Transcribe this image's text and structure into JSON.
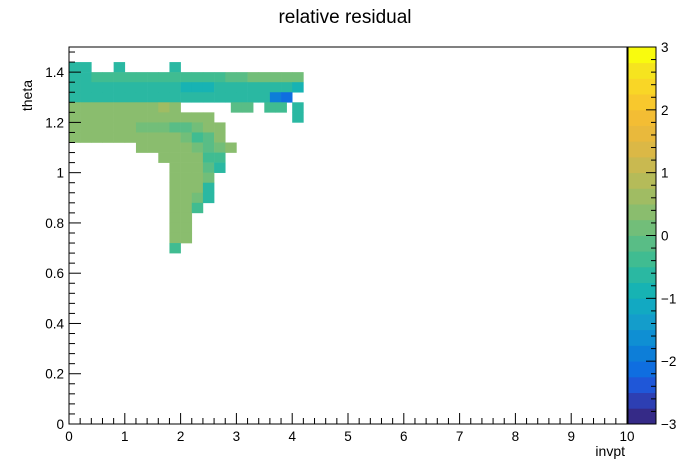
{
  "chart_data": {
    "type": "heatmap",
    "title": "relative residual",
    "xlabel": "invpt",
    "ylabel": "theta",
    "xlim": [
      0,
      10
    ],
    "ylim": [
      0,
      1.5
    ],
    "x_ticks": [
      "0",
      "1",
      "2",
      "3",
      "4",
      "5",
      "6",
      "7",
      "8",
      "9",
      "10"
    ],
    "y_ticks": [
      "0",
      "0.2",
      "0.4",
      "0.6",
      "0.8",
      "1",
      "1.2",
      "1.4"
    ],
    "color_scale": {
      "min": -3,
      "max": 3,
      "ticks": [
        "−3",
        "−2",
        "−1",
        "0",
        "1",
        "2",
        "3"
      ],
      "palette": [
        "#352a87",
        "#2d3fb3",
        "#1f57d8",
        "#0f6ee0",
        "#0d7ed8",
        "#0f8fd3",
        "#149dcb",
        "#12a9c2",
        "#17b3b3",
        "#2ab8a2",
        "#40bc91",
        "#59bd86",
        "#72be79",
        "#8abd6e",
        "#a0bc63",
        "#b5bb59",
        "#c9b950",
        "#dbb846",
        "#e9b93c",
        "#f3bd34",
        "#f8c82d",
        "#f9d626",
        "#f6e41f",
        "#f9fb0e"
      ]
    },
    "cell_size": {
      "dx": 0.2,
      "dy": 0.04
    },
    "cells": [
      {
        "x": 0.1,
        "y": 1.42,
        "v": -0.6
      },
      {
        "x": 0.3,
        "y": 1.42,
        "v": -0.6
      },
      {
        "x": 0.9,
        "y": 1.42,
        "v": -0.6
      },
      {
        "x": 1.9,
        "y": 1.42,
        "v": -0.6
      },
      {
        "x": 0.1,
        "y": 1.38,
        "v": -0.6
      },
      {
        "x": 0.3,
        "y": 1.38,
        "v": -0.6
      },
      {
        "x": 0.5,
        "y": 1.38,
        "v": -0.5
      },
      {
        "x": 0.7,
        "y": 1.38,
        "v": -0.5
      },
      {
        "x": 0.9,
        "y": 1.38,
        "v": -0.5
      },
      {
        "x": 1.1,
        "y": 1.38,
        "v": -0.5
      },
      {
        "x": 1.3,
        "y": 1.38,
        "v": -0.5
      },
      {
        "x": 1.5,
        "y": 1.38,
        "v": -0.5
      },
      {
        "x": 1.7,
        "y": 1.38,
        "v": -0.5
      },
      {
        "x": 1.9,
        "y": 1.38,
        "v": -0.5
      },
      {
        "x": 2.1,
        "y": 1.38,
        "v": -0.4
      },
      {
        "x": 2.3,
        "y": 1.38,
        "v": -0.4
      },
      {
        "x": 2.5,
        "y": 1.38,
        "v": -0.3
      },
      {
        "x": 2.7,
        "y": 1.38,
        "v": -0.3
      },
      {
        "x": 2.9,
        "y": 1.38,
        "v": -0.2
      },
      {
        "x": 3.1,
        "y": 1.38,
        "v": -0.1
      },
      {
        "x": 3.3,
        "y": 1.38,
        "v": 0.0
      },
      {
        "x": 3.5,
        "y": 1.38,
        "v": 0.0
      },
      {
        "x": 3.7,
        "y": 1.38,
        "v": 0.1
      },
      {
        "x": 3.9,
        "y": 1.38,
        "v": 0.1
      },
      {
        "x": 4.1,
        "y": 1.38,
        "v": 0.1
      },
      {
        "x": 0.1,
        "y": 1.34,
        "v": -0.6
      },
      {
        "x": 0.3,
        "y": 1.34,
        "v": -0.6
      },
      {
        "x": 0.5,
        "y": 1.34,
        "v": -0.6
      },
      {
        "x": 0.7,
        "y": 1.34,
        "v": -0.6
      },
      {
        "x": 0.9,
        "y": 1.34,
        "v": -0.6
      },
      {
        "x": 1.1,
        "y": 1.34,
        "v": -0.7
      },
      {
        "x": 1.3,
        "y": 1.34,
        "v": -0.7
      },
      {
        "x": 1.5,
        "y": 1.34,
        "v": -0.7
      },
      {
        "x": 1.7,
        "y": 1.34,
        "v": -0.7
      },
      {
        "x": 1.9,
        "y": 1.34,
        "v": -0.7
      },
      {
        "x": 2.1,
        "y": 1.34,
        "v": -0.8
      },
      {
        "x": 2.3,
        "y": 1.34,
        "v": -0.8
      },
      {
        "x": 2.5,
        "y": 1.34,
        "v": -0.8
      },
      {
        "x": 2.7,
        "y": 1.34,
        "v": -0.7
      },
      {
        "x": 2.9,
        "y": 1.34,
        "v": -0.6
      },
      {
        "x": 3.1,
        "y": 1.34,
        "v": -0.6
      },
      {
        "x": 3.3,
        "y": 1.34,
        "v": -0.6
      },
      {
        "x": 3.5,
        "y": 1.34,
        "v": -0.6
      },
      {
        "x": 3.7,
        "y": 1.34,
        "v": -0.6
      },
      {
        "x": 3.9,
        "y": 1.34,
        "v": -0.6
      },
      {
        "x": 4.1,
        "y": 1.34,
        "v": -1.0
      },
      {
        "x": 0.1,
        "y": 1.3,
        "v": -0.6
      },
      {
        "x": 0.3,
        "y": 1.3,
        "v": -0.6
      },
      {
        "x": 0.5,
        "y": 1.3,
        "v": -0.6
      },
      {
        "x": 0.7,
        "y": 1.3,
        "v": -0.6
      },
      {
        "x": 0.9,
        "y": 1.3,
        "v": -0.6
      },
      {
        "x": 1.1,
        "y": 1.3,
        "v": -0.6
      },
      {
        "x": 1.3,
        "y": 1.3,
        "v": -0.6
      },
      {
        "x": 1.5,
        "y": 1.3,
        "v": -0.6
      },
      {
        "x": 1.7,
        "y": 1.3,
        "v": -0.6
      },
      {
        "x": 1.9,
        "y": 1.3,
        "v": -0.6
      },
      {
        "x": 2.1,
        "y": 1.3,
        "v": -0.6
      },
      {
        "x": 2.3,
        "y": 1.3,
        "v": -0.6
      },
      {
        "x": 2.5,
        "y": 1.3,
        "v": -0.6
      },
      {
        "x": 2.7,
        "y": 1.3,
        "v": -0.6
      },
      {
        "x": 2.9,
        "y": 1.3,
        "v": -0.6
      },
      {
        "x": 3.1,
        "y": 1.3,
        "v": -0.6
      },
      {
        "x": 3.3,
        "y": 1.3,
        "v": -0.6
      },
      {
        "x": 3.5,
        "y": 1.3,
        "v": -0.6
      },
      {
        "x": 3.7,
        "y": 1.3,
        "v": -2.0
      },
      {
        "x": 3.9,
        "y": 1.3,
        "v": -2.2
      },
      {
        "x": 3.0,
        "y": 1.26,
        "v": -0.2
      },
      {
        "x": 3.2,
        "y": 1.26,
        "v": -0.2
      },
      {
        "x": 3.6,
        "y": 1.26,
        "v": -0.5
      },
      {
        "x": 3.8,
        "y": 1.26,
        "v": -0.5
      },
      {
        "x": 4.1,
        "y": 1.26,
        "v": -0.6
      },
      {
        "x": 4.1,
        "y": 1.22,
        "v": -0.6
      },
      {
        "x": 0.1,
        "y": 1.26,
        "v": 0.3
      },
      {
        "x": 0.3,
        "y": 1.26,
        "v": 0.3
      },
      {
        "x": 0.5,
        "y": 1.26,
        "v": 0.3
      },
      {
        "x": 0.7,
        "y": 1.26,
        "v": 0.3
      },
      {
        "x": 0.9,
        "y": 1.26,
        "v": 0.3
      },
      {
        "x": 1.1,
        "y": 1.26,
        "v": 0.3
      },
      {
        "x": 1.3,
        "y": 1.26,
        "v": 0.3
      },
      {
        "x": 1.5,
        "y": 1.26,
        "v": 0.3
      },
      {
        "x": 1.7,
        "y": 1.26,
        "v": 0.5
      },
      {
        "x": 1.9,
        "y": 1.26,
        "v": 0.3
      },
      {
        "x": 0.1,
        "y": 1.22,
        "v": 0.3
      },
      {
        "x": 0.3,
        "y": 1.22,
        "v": 0.3
      },
      {
        "x": 0.5,
        "y": 1.22,
        "v": 0.3
      },
      {
        "x": 0.7,
        "y": 1.22,
        "v": 0.3
      },
      {
        "x": 0.9,
        "y": 1.22,
        "v": 0.3
      },
      {
        "x": 1.1,
        "y": 1.22,
        "v": 0.3
      },
      {
        "x": 1.3,
        "y": 1.22,
        "v": 0.3
      },
      {
        "x": 1.5,
        "y": 1.22,
        "v": 0.3
      },
      {
        "x": 1.7,
        "y": 1.22,
        "v": 0.3
      },
      {
        "x": 1.9,
        "y": 1.22,
        "v": 0.3
      },
      {
        "x": 2.1,
        "y": 1.22,
        "v": 0.3
      },
      {
        "x": 2.3,
        "y": 1.22,
        "v": 0.3
      },
      {
        "x": 2.5,
        "y": 1.22,
        "v": 0.3
      },
      {
        "x": 0.1,
        "y": 1.18,
        "v": 0.4
      },
      {
        "x": 0.3,
        "y": 1.18,
        "v": 0.4
      },
      {
        "x": 0.5,
        "y": 1.18,
        "v": 0.4
      },
      {
        "x": 0.7,
        "y": 1.18,
        "v": 0.4
      },
      {
        "x": 0.9,
        "y": 1.18,
        "v": 0.4
      },
      {
        "x": 1.1,
        "y": 1.18,
        "v": 0.4
      },
      {
        "x": 1.3,
        "y": 1.18,
        "v": 0.2
      },
      {
        "x": 1.5,
        "y": 1.18,
        "v": 0.1
      },
      {
        "x": 1.7,
        "y": 1.18,
        "v": 0.0
      },
      {
        "x": 1.9,
        "y": 1.18,
        "v": -0.1
      },
      {
        "x": 2.1,
        "y": 1.18,
        "v": -0.2
      },
      {
        "x": 2.3,
        "y": 1.18,
        "v": 0.1
      },
      {
        "x": 2.5,
        "y": 1.18,
        "v": 0.3
      },
      {
        "x": 2.7,
        "y": 1.18,
        "v": 0.3
      },
      {
        "x": 0.1,
        "y": 1.14,
        "v": 0.4
      },
      {
        "x": 0.3,
        "y": 1.14,
        "v": 0.4
      },
      {
        "x": 0.5,
        "y": 1.14,
        "v": 0.4
      },
      {
        "x": 0.7,
        "y": 1.14,
        "v": 0.4
      },
      {
        "x": 0.9,
        "y": 1.14,
        "v": 0.4
      },
      {
        "x": 1.1,
        "y": 1.14,
        "v": 0.4
      },
      {
        "x": 1.3,
        "y": 1.14,
        "v": 0.4
      },
      {
        "x": 1.5,
        "y": 1.14,
        "v": 0.4
      },
      {
        "x": 1.7,
        "y": 1.14,
        "v": 0.3
      },
      {
        "x": 1.9,
        "y": 1.14,
        "v": 0.3
      },
      {
        "x": 2.1,
        "y": 1.14,
        "v": 0.0
      },
      {
        "x": 2.3,
        "y": 1.14,
        "v": -0.3
      },
      {
        "x": 2.5,
        "y": 1.14,
        "v": -0.2
      },
      {
        "x": 2.7,
        "y": 1.14,
        "v": 0.3
      },
      {
        "x": 1.3,
        "y": 1.1,
        "v": 0.4
      },
      {
        "x": 1.5,
        "y": 1.1,
        "v": 0.4
      },
      {
        "x": 1.7,
        "y": 1.1,
        "v": 0.4
      },
      {
        "x": 1.9,
        "y": 1.1,
        "v": 0.4
      },
      {
        "x": 2.1,
        "y": 1.1,
        "v": 0.3
      },
      {
        "x": 2.3,
        "y": 1.1,
        "v": 0.2
      },
      {
        "x": 2.5,
        "y": 1.1,
        "v": -0.2
      },
      {
        "x": 2.7,
        "y": 1.1,
        "v": 0.0
      },
      {
        "x": 2.9,
        "y": 1.1,
        "v": 0.3
      },
      {
        "x": 1.7,
        "y": 1.06,
        "v": 0.4
      },
      {
        "x": 1.9,
        "y": 1.06,
        "v": 0.4
      },
      {
        "x": 2.1,
        "y": 1.06,
        "v": 0.4
      },
      {
        "x": 2.3,
        "y": 1.06,
        "v": 0.3
      },
      {
        "x": 2.5,
        "y": 1.06,
        "v": -0.3
      },
      {
        "x": 2.7,
        "y": 1.06,
        "v": -0.5
      },
      {
        "x": 1.9,
        "y": 1.02,
        "v": 0.4
      },
      {
        "x": 2.1,
        "y": 1.02,
        "v": 0.4
      },
      {
        "x": 2.3,
        "y": 1.02,
        "v": 0.3
      },
      {
        "x": 2.5,
        "y": 1.02,
        "v": -0.2
      },
      {
        "x": 2.7,
        "y": 1.02,
        "v": -0.6
      },
      {
        "x": 1.9,
        "y": 0.98,
        "v": 0.4
      },
      {
        "x": 2.1,
        "y": 0.98,
        "v": 0.4
      },
      {
        "x": 2.3,
        "y": 0.98,
        "v": 0.3
      },
      {
        "x": 2.5,
        "y": 0.98,
        "v": 0.0
      },
      {
        "x": 1.9,
        "y": 0.94,
        "v": 0.4
      },
      {
        "x": 2.1,
        "y": 0.94,
        "v": 0.4
      },
      {
        "x": 2.3,
        "y": 0.94,
        "v": 0.3
      },
      {
        "x": 2.5,
        "y": 0.94,
        "v": -0.6
      },
      {
        "x": 1.9,
        "y": 0.9,
        "v": 0.4
      },
      {
        "x": 2.1,
        "y": 0.9,
        "v": 0.4
      },
      {
        "x": 2.3,
        "y": 0.9,
        "v": 0.0
      },
      {
        "x": 2.5,
        "y": 0.9,
        "v": -0.7
      },
      {
        "x": 1.9,
        "y": 0.86,
        "v": 0.4
      },
      {
        "x": 2.1,
        "y": 0.86,
        "v": 0.4
      },
      {
        "x": 2.3,
        "y": 0.86,
        "v": -0.5
      },
      {
        "x": 1.9,
        "y": 0.82,
        "v": 0.4
      },
      {
        "x": 2.1,
        "y": 0.82,
        "v": 0.4
      },
      {
        "x": 1.9,
        "y": 0.78,
        "v": 0.4
      },
      {
        "x": 2.1,
        "y": 0.78,
        "v": 0.4
      },
      {
        "x": 1.9,
        "y": 0.74,
        "v": 0.4
      },
      {
        "x": 2.1,
        "y": 0.74,
        "v": 0.4
      },
      {
        "x": 1.9,
        "y": 0.7,
        "v": -0.5
      }
    ]
  }
}
